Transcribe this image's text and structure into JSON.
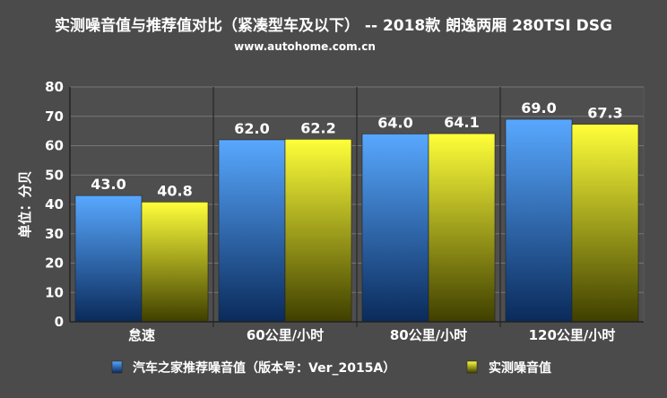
{
  "title": "实测噪音值与推荐值对比（紧凑型车及以下） -- 2018款 朗逸两厢 280TSI DSG",
  "subtitle": "www.autohome.com.cn",
  "colors": {
    "background": "#4b4b4b",
    "plot_area": "#4e4e4e",
    "recommended_top": "#58a8ff",
    "recommended_bottom": "#0a2a5a",
    "measured_top": "#ffff3a",
    "measured_bottom": "#3f3f00",
    "grid": "#777777",
    "text": "#ffffff"
  },
  "chart_data": {
    "type": "bar",
    "title": "实测噪音值与推荐值对比（紧凑型车及以下） -- 2018款 朗逸两厢 280TSI DSG",
    "subtitle": "www.autohome.com.cn",
    "xlabel": "",
    "ylabel": "单位：分贝",
    "ylim": [
      0,
      80
    ],
    "yticks": [
      0,
      10,
      20,
      30,
      40,
      50,
      60,
      70,
      80
    ],
    "grid": true,
    "legend_position": "bottom",
    "categories": [
      "怠速",
      "60公里/小时",
      "80公里/小时",
      "120公里/小时"
    ],
    "series": [
      {
        "name": "汽车之家推荐噪音值（版本号：Ver_2015A）",
        "values": [
          43.0,
          62.0,
          64.0,
          69.0
        ]
      },
      {
        "name": "实测噪音值",
        "values": [
          40.8,
          62.2,
          64.1,
          67.3
        ]
      }
    ]
  }
}
